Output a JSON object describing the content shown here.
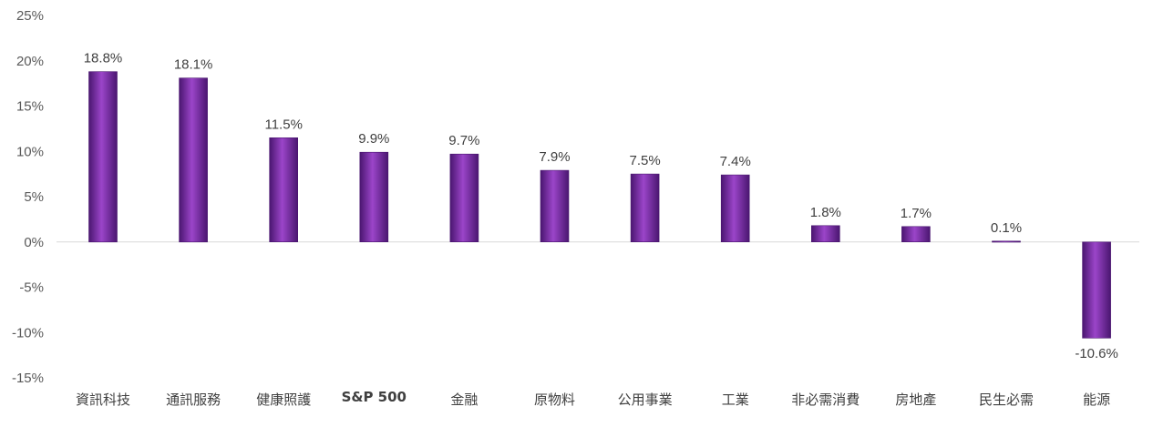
{
  "chart_data": {
    "type": "bar",
    "categories": [
      "資訊科技",
      "通訊服務",
      "健康照護",
      "S&P 500",
      "金融",
      "原物料",
      "公用事業",
      "工業",
      "非必需消費",
      "房地產",
      "民生必需",
      "能源"
    ],
    "values": [
      18.8,
      18.1,
      11.5,
      9.9,
      9.7,
      7.9,
      7.5,
      7.4,
      1.8,
      1.7,
      0.1,
      -10.6
    ],
    "value_labels": [
      "18.8%",
      "18.1%",
      "11.5%",
      "9.9%",
      "9.7%",
      "7.9%",
      "7.5%",
      "7.4%",
      "1.8%",
      "1.7%",
      "0.1%",
      "-10.6%"
    ],
    "highlight_category": "S&P 500",
    "yticks": [
      25,
      20,
      15,
      10,
      5,
      0,
      -5,
      -10,
      -15
    ],
    "ytick_labels": [
      "25%",
      "20%",
      "15%",
      "10%",
      "5%",
      "0%",
      "-5%",
      "-10%",
      "-15%"
    ],
    "ylim": [
      -15,
      25
    ],
    "title": "",
    "xlabel": "",
    "ylabel": "",
    "grid": false,
    "legend": "none",
    "colors": {
      "bar_fill": "#7030A0",
      "bar_light": "#9B45C9",
      "bar_dark": "#4A1670",
      "axis_line": "#D9D9D9"
    }
  }
}
